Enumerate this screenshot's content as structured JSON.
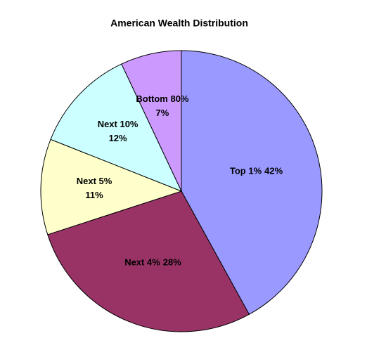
{
  "chart_data": {
    "type": "pie",
    "title": "American Wealth Distribution",
    "categories": [
      "Top 1%",
      "Next 4%",
      "Next 5%",
      "Next 10%",
      "Bottom 80%"
    ],
    "values": [
      42,
      28,
      11,
      12,
      7
    ],
    "value_labels": [
      "42%",
      "28%",
      "11%",
      "12%",
      "7%"
    ],
    "colors": [
      "#9999ff",
      "#993366",
      "#ffffcc",
      "#ccffff",
      "#cc99ff"
    ]
  }
}
